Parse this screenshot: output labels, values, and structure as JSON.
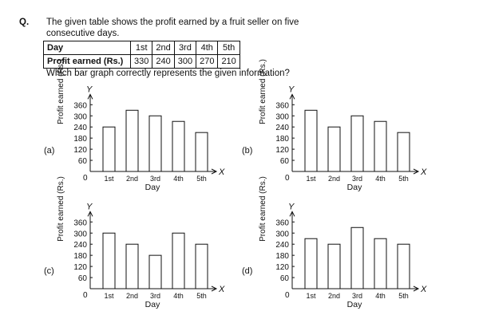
{
  "question": {
    "label": "Q.",
    "text": "The given table shows the profit earned by a fruit seller on five consecutive days.",
    "ask": "Which bar graph correctly represents the given information?"
  },
  "table": {
    "row1_label": "Day",
    "days": [
      "1st",
      "2nd",
      "3rd",
      "4th",
      "5th"
    ],
    "row2_label": "Profit earned (Rs.)",
    "values": [
      330,
      240,
      300,
      270,
      210
    ]
  },
  "chart_data": [
    {
      "type": "bar",
      "option": "(a)",
      "categories": [
        "1st",
        "2nd",
        "3rd",
        "4th",
        "5th"
      ],
      "values": [
        240,
        330,
        300,
        270,
        210
      ],
      "xlabel": "Day",
      "ylabel": "Profit earned (Rs.)",
      "x_axis_letter": "X",
      "y_axis_letter": "Y",
      "origin_label": "0",
      "yticks": [
        60,
        120,
        180,
        240,
        300,
        360
      ],
      "ylim": [
        0,
        390
      ]
    },
    {
      "type": "bar",
      "option": "(b)",
      "categories": [
        "1st",
        "2nd",
        "3rd",
        "4th",
        "5th"
      ],
      "values": [
        330,
        240,
        300,
        270,
        210
      ],
      "xlabel": "Day",
      "ylabel": "Profit earned (Rs.)",
      "x_axis_letter": "X",
      "y_axis_letter": "Y",
      "origin_label": "0",
      "yticks": [
        60,
        120,
        180,
        240,
        300,
        360
      ],
      "ylim": [
        0,
        390
      ]
    },
    {
      "type": "bar",
      "option": "(c)",
      "categories": [
        "1st",
        "2nd",
        "3rd",
        "4th",
        "5th"
      ],
      "values": [
        300,
        240,
        180,
        300,
        240
      ],
      "xlabel": "Day",
      "ylabel": "Profit earned (Rs.)",
      "x_axis_letter": "X",
      "y_axis_letter": "Y",
      "origin_label": "0",
      "yticks": [
        60,
        120,
        180,
        240,
        300,
        360
      ],
      "ylim": [
        0,
        390
      ]
    },
    {
      "type": "bar",
      "option": "(d)",
      "categories": [
        "1st",
        "2nd",
        "3rd",
        "4th",
        "5th"
      ],
      "values": [
        270,
        240,
        330,
        270,
        240
      ],
      "xlabel": "Day",
      "ylabel": "Profit earned (Rs.)",
      "x_axis_letter": "X",
      "y_axis_letter": "Y",
      "origin_label": "0",
      "yticks": [
        60,
        120,
        180,
        240,
        300,
        360
      ],
      "ylim": [
        0,
        390
      ]
    }
  ]
}
